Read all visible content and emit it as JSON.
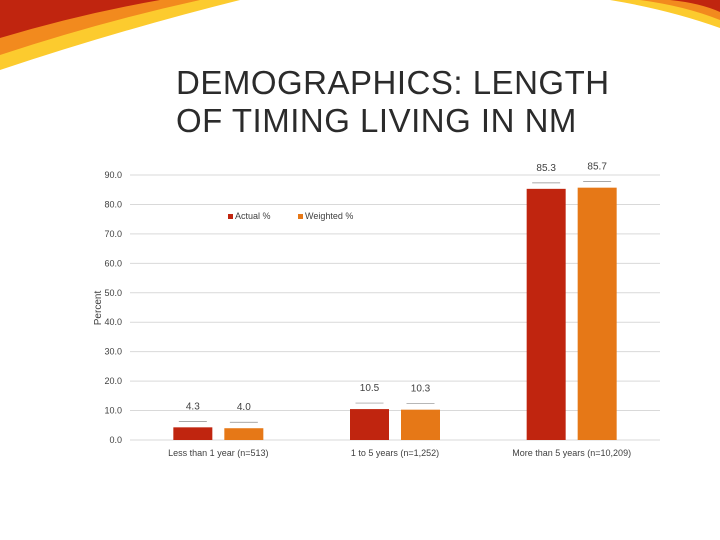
{
  "slide": {
    "title_line1": "DEMOGRAPHICS: LENGTH",
    "title_line2": "OF TIMING LIVING IN NM"
  },
  "colors": {
    "actual": "#C0250F",
    "weighted": "#E67817",
    "grid": "#D9D9D9",
    "text": "#404040",
    "deco_dark": "#C0250F",
    "deco_orange": "#F28A1E",
    "deco_yellow": "#FCCB2E"
  },
  "chart_data": {
    "type": "bar",
    "title": "",
    "xlabel": "",
    "ylabel": "Percent",
    "ylim": [
      0,
      90
    ],
    "yticks": [
      "0.0",
      "10.0",
      "20.0",
      "30.0",
      "40.0",
      "50.0",
      "60.0",
      "70.0",
      "80.0",
      "90.0"
    ],
    "grid": true,
    "legend_position": "top-center",
    "categories": [
      "Less than 1 year (n=513)",
      "1 to 5 years (n=1,252)",
      "More than 5 years (n=10,209)"
    ],
    "series": [
      {
        "name": "Actual %",
        "values": [
          4.3,
          10.5,
          85.3
        ],
        "labels": [
          "4.3",
          "10.5",
          "85.3"
        ]
      },
      {
        "name": "Weighted %",
        "values": [
          4.0,
          10.3,
          85.7
        ],
        "labels": [
          "4.0",
          "10.3",
          "85.7"
        ]
      }
    ]
  }
}
